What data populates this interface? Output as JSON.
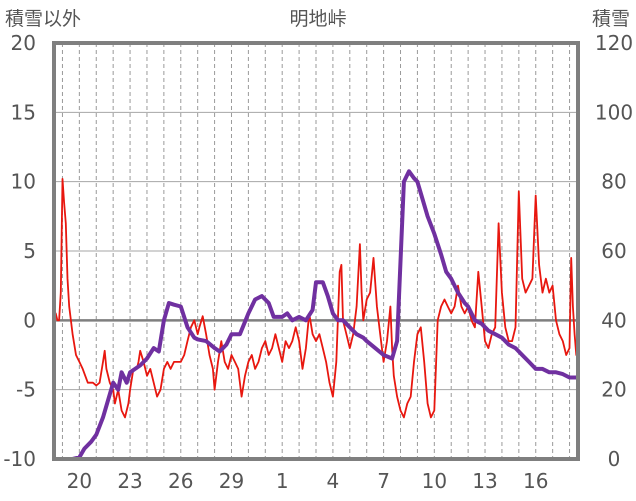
{
  "chart_data": {
    "type": "line",
    "title": "明地峠",
    "y_left_label": "積雪以外",
    "y_right_label": "積雪",
    "y_left_range": [
      -10,
      20
    ],
    "y_right_range": [
      0,
      120
    ],
    "y_left_ticks": [
      "20",
      "15",
      "10",
      "5",
      "0",
      "-5",
      "-10"
    ],
    "y_right_ticks": [
      "120",
      "100",
      "80",
      "60",
      "40",
      "20",
      "0"
    ],
    "x_ticks": [
      {
        "label": "20",
        "day": 20
      },
      {
        "label": "23",
        "day": 23
      },
      {
        "label": "26",
        "day": 26
      },
      {
        "label": "29",
        "day": 29
      },
      {
        "label": "1",
        "day": 32
      },
      {
        "label": "4",
        "day": 35
      },
      {
        "label": "7",
        "day": 38
      },
      {
        "label": "10",
        "day": 41
      },
      {
        "label": "13",
        "day": 44
      },
      {
        "label": "16",
        "day": 47
      }
    ],
    "x_range": [
      18.5,
      49.5
    ],
    "grid": true,
    "series": [
      {
        "axis": "left",
        "color": "#e8170f",
        "points": [
          [
            18.6,
            0.5
          ],
          [
            18.7,
            0
          ],
          [
            18.8,
            0
          ],
          [
            18.9,
            2
          ],
          [
            19.0,
            10.2
          ],
          [
            19.1,
            8.5
          ],
          [
            19.2,
            7
          ],
          [
            19.3,
            3
          ],
          [
            19.4,
            1
          ],
          [
            19.6,
            -1
          ],
          [
            19.8,
            -2.5
          ],
          [
            20.0,
            -3
          ],
          [
            20.2,
            -3.5
          ],
          [
            20.5,
            -4.5
          ],
          [
            20.8,
            -4.5
          ],
          [
            21.0,
            -4.7
          ],
          [
            21.2,
            -4.5
          ],
          [
            21.4,
            -3
          ],
          [
            21.5,
            -2.2
          ],
          [
            21.6,
            -3.5
          ],
          [
            21.8,
            -4.5
          ],
          [
            22.0,
            -5
          ],
          [
            22.1,
            -6
          ],
          [
            22.3,
            -5
          ],
          [
            22.5,
            -6.5
          ],
          [
            22.7,
            -7
          ],
          [
            22.9,
            -6
          ],
          [
            23.0,
            -5
          ],
          [
            23.2,
            -3.5
          ],
          [
            23.4,
            -3.5
          ],
          [
            23.5,
            -3
          ],
          [
            23.6,
            -2.2
          ],
          [
            23.8,
            -3
          ],
          [
            24.0,
            -4
          ],
          [
            24.2,
            -3.5
          ],
          [
            24.4,
            -4.5
          ],
          [
            24.6,
            -5.5
          ],
          [
            24.8,
            -5
          ],
          [
            25.0,
            -3.5
          ],
          [
            25.2,
            -3
          ],
          [
            25.4,
            -3.5
          ],
          [
            25.6,
            -3
          ],
          [
            25.8,
            -3
          ],
          [
            26.0,
            -3
          ],
          [
            26.2,
            -2.5
          ],
          [
            26.4,
            -1.5
          ],
          [
            26.6,
            -0.5
          ],
          [
            26.8,
            0
          ],
          [
            27.0,
            -1
          ],
          [
            27.1,
            -0.5
          ],
          [
            27.3,
            0.3
          ],
          [
            27.5,
            -1
          ],
          [
            27.7,
            -2.5
          ],
          [
            27.9,
            -3.5
          ],
          [
            28.0,
            -5
          ],
          [
            28.2,
            -3
          ],
          [
            28.4,
            -1.5
          ],
          [
            28.6,
            -3
          ],
          [
            28.8,
            -3.5
          ],
          [
            29.0,
            -2.5
          ],
          [
            29.2,
            -3
          ],
          [
            29.4,
            -3.5
          ],
          [
            29.6,
            -5.5
          ],
          [
            29.8,
            -4
          ],
          [
            30.0,
            -3
          ],
          [
            30.2,
            -2.5
          ],
          [
            30.4,
            -3.5
          ],
          [
            30.6,
            -3
          ],
          [
            30.8,
            -2
          ],
          [
            31.0,
            -1.5
          ],
          [
            31.2,
            -2.5
          ],
          [
            31.4,
            -2
          ],
          [
            31.6,
            -1
          ],
          [
            31.8,
            -2
          ],
          [
            32.0,
            -3
          ],
          [
            32.2,
            -1.5
          ],
          [
            32.4,
            -2
          ],
          [
            32.6,
            -1.5
          ],
          [
            32.8,
            -0.5
          ],
          [
            33.0,
            -1.5
          ],
          [
            33.2,
            -3.5
          ],
          [
            33.4,
            -2
          ],
          [
            33.6,
            0.5
          ],
          [
            33.8,
            -1
          ],
          [
            34.0,
            -1.5
          ],
          [
            34.2,
            -1
          ],
          [
            34.4,
            -2
          ],
          [
            34.6,
            -3
          ],
          [
            34.8,
            -4.5
          ],
          [
            35.0,
            -5.5
          ],
          [
            35.2,
            -3
          ],
          [
            35.4,
            3.5
          ],
          [
            35.5,
            4
          ],
          [
            35.6,
            0
          ],
          [
            35.8,
            -1
          ],
          [
            36.0,
            -2
          ],
          [
            36.2,
            -1
          ],
          [
            36.4,
            1
          ],
          [
            36.6,
            5.5
          ],
          [
            36.7,
            2
          ],
          [
            36.8,
            0
          ],
          [
            37.0,
            1.5
          ],
          [
            37.2,
            2
          ],
          [
            37.4,
            4.5
          ],
          [
            37.6,
            1
          ],
          [
            37.8,
            -1
          ],
          [
            38.0,
            -3
          ],
          [
            38.2,
            -1.5
          ],
          [
            38.4,
            1
          ],
          [
            38.5,
            -2
          ],
          [
            38.6,
            -4
          ],
          [
            38.8,
            -5.5
          ],
          [
            39.0,
            -6.5
          ],
          [
            39.2,
            -7
          ],
          [
            39.4,
            -6
          ],
          [
            39.6,
            -5.5
          ],
          [
            39.8,
            -3
          ],
          [
            40.0,
            -1
          ],
          [
            40.2,
            -0.5
          ],
          [
            40.4,
            -3
          ],
          [
            40.6,
            -6
          ],
          [
            40.8,
            -7
          ],
          [
            41.0,
            -6.5
          ],
          [
            41.2,
            0
          ],
          [
            41.4,
            1
          ],
          [
            41.6,
            1.5
          ],
          [
            41.8,
            1
          ],
          [
            42.0,
            0.5
          ],
          [
            42.2,
            1
          ],
          [
            42.4,
            2.5
          ],
          [
            42.6,
            1
          ],
          [
            42.8,
            0.5
          ],
          [
            43.0,
            1
          ],
          [
            43.2,
            0
          ],
          [
            43.4,
            -0.5
          ],
          [
            43.6,
            3.5
          ],
          [
            43.8,
            1
          ],
          [
            44.0,
            -1.5
          ],
          [
            44.2,
            -2
          ],
          [
            44.4,
            -1
          ],
          [
            44.6,
            -0.5
          ],
          [
            44.8,
            7
          ],
          [
            45.0,
            2
          ],
          [
            45.2,
            -0.5
          ],
          [
            45.4,
            -1.5
          ],
          [
            45.6,
            -1.5
          ],
          [
            45.8,
            -0.5
          ],
          [
            46.0,
            9.3
          ],
          [
            46.2,
            3
          ],
          [
            46.4,
            2
          ],
          [
            46.6,
            2.5
          ],
          [
            46.8,
            3
          ],
          [
            47.0,
            9
          ],
          [
            47.2,
            4
          ],
          [
            47.4,
            2
          ],
          [
            47.6,
            3
          ],
          [
            47.8,
            2
          ],
          [
            48.0,
            2.5
          ],
          [
            48.2,
            0
          ],
          [
            48.4,
            -1
          ],
          [
            48.6,
            -1.5
          ],
          [
            48.8,
            -2.5
          ],
          [
            49.0,
            -2
          ],
          [
            49.1,
            4.5
          ],
          [
            49.2,
            1
          ],
          [
            49.3,
            -1
          ],
          [
            49.4,
            -2.5
          ]
        ]
      },
      {
        "axis": "right",
        "color": "#7030a0",
        "points": [
          [
            18.5,
            0
          ],
          [
            19.0,
            0
          ],
          [
            19.6,
            0
          ],
          [
            20.0,
            0.5
          ],
          [
            20.3,
            3
          ],
          [
            20.7,
            5
          ],
          [
            21.0,
            7
          ],
          [
            21.4,
            12
          ],
          [
            21.7,
            17
          ],
          [
            22.0,
            22
          ],
          [
            22.3,
            20
          ],
          [
            22.5,
            25
          ],
          [
            22.8,
            22
          ],
          [
            23.0,
            25
          ],
          [
            23.3,
            26
          ],
          [
            23.6,
            27
          ],
          [
            24.0,
            29
          ],
          [
            24.4,
            32
          ],
          [
            24.7,
            31
          ],
          [
            25.0,
            40
          ],
          [
            25.3,
            45
          ],
          [
            25.6,
            44.5
          ],
          [
            26.0,
            44
          ],
          [
            26.4,
            38
          ],
          [
            26.8,
            35
          ],
          [
            27.0,
            34.5
          ],
          [
            27.5,
            34
          ],
          [
            28.0,
            32
          ],
          [
            28.3,
            31
          ],
          [
            28.7,
            33
          ],
          [
            29.0,
            36
          ],
          [
            29.5,
            36
          ],
          [
            30.0,
            42
          ],
          [
            30.4,
            46
          ],
          [
            30.8,
            47
          ],
          [
            31.2,
            45
          ],
          [
            31.5,
            41
          ],
          [
            32.0,
            41
          ],
          [
            32.3,
            42
          ],
          [
            32.6,
            40
          ],
          [
            33.0,
            41
          ],
          [
            33.4,
            40
          ],
          [
            33.8,
            43
          ],
          [
            34.0,
            51
          ],
          [
            34.4,
            51
          ],
          [
            34.7,
            47
          ],
          [
            35.0,
            42
          ],
          [
            35.3,
            40
          ],
          [
            35.6,
            40
          ],
          [
            36.0,
            38
          ],
          [
            36.4,
            36
          ],
          [
            36.8,
            35
          ],
          [
            37.0,
            34
          ],
          [
            37.5,
            32
          ],
          [
            38.0,
            30
          ],
          [
            38.5,
            29
          ],
          [
            38.8,
            34
          ],
          [
            39.2,
            80
          ],
          [
            39.5,
            83
          ],
          [
            39.8,
            81
          ],
          [
            40.0,
            80
          ],
          [
            40.3,
            75
          ],
          [
            40.6,
            70
          ],
          [
            41.0,
            65
          ],
          [
            41.4,
            59
          ],
          [
            41.7,
            54
          ],
          [
            42.0,
            52
          ],
          [
            42.4,
            48
          ],
          [
            42.8,
            45
          ],
          [
            43.0,
            44
          ],
          [
            43.4,
            40
          ],
          [
            43.8,
            39
          ],
          [
            44.2,
            37
          ],
          [
            44.6,
            36
          ],
          [
            45.0,
            35
          ],
          [
            45.4,
            33
          ],
          [
            45.8,
            32
          ],
          [
            46.2,
            30
          ],
          [
            46.6,
            28
          ],
          [
            47.0,
            26
          ],
          [
            47.4,
            26
          ],
          [
            47.8,
            25
          ],
          [
            48.2,
            25
          ],
          [
            48.6,
            24.5
          ],
          [
            49.0,
            23.5
          ],
          [
            49.4,
            23.5
          ]
        ]
      }
    ]
  }
}
